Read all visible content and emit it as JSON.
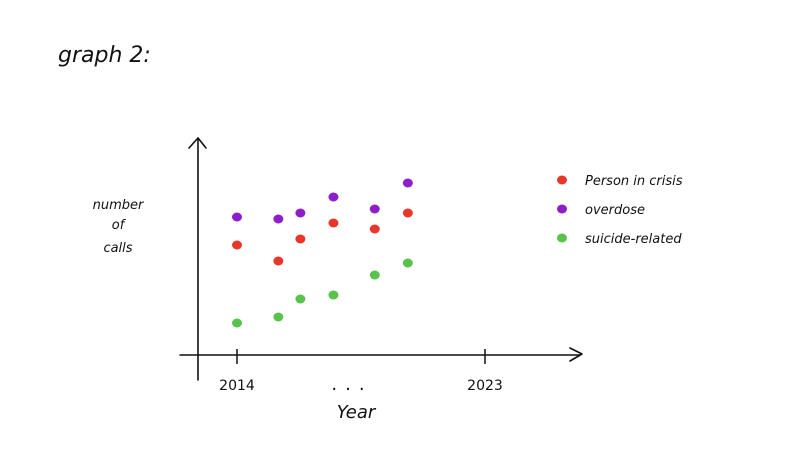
{
  "heading": "graph 2:",
  "chart_data": {
    "type": "scatter",
    "title": "graph 2:",
    "xlabel": "Year",
    "ylabel": "number of calls",
    "ylabel_lines": [
      "number",
      "of",
      "calls"
    ],
    "x_tick_labels": [
      "2014",
      "...",
      "2023"
    ],
    "x_ticks": [
      2014,
      2023
    ],
    "xlim": [
      2013,
      2024
    ],
    "ylim": [
      0,
      10
    ],
    "y_ticks": [],
    "grid": false,
    "legend_position": "right",
    "series": [
      {
        "name": "Person in crisis",
        "color": "#e8362b",
        "x": [
          2014,
          2015.5,
          2016.3,
          2017.5,
          2019,
          2020.2
        ],
        "y": [
          5.0,
          4.2,
          5.3,
          6.1,
          5.8,
          6.6
        ]
      },
      {
        "name": "overdose",
        "color": "#8e1fc8",
        "x": [
          2014,
          2015.5,
          2016.3,
          2017.5,
          2019,
          2020.2
        ],
        "y": [
          6.4,
          6.3,
          6.6,
          7.4,
          6.8,
          8.1
        ]
      },
      {
        "name": "suicide-related",
        "color": "#58c24a",
        "x": [
          2014,
          2015.5,
          2016.3,
          2017.5,
          2019,
          2020.2
        ],
        "y": [
          1.1,
          1.4,
          2.3,
          2.5,
          3.5,
          4.1
        ]
      }
    ]
  }
}
